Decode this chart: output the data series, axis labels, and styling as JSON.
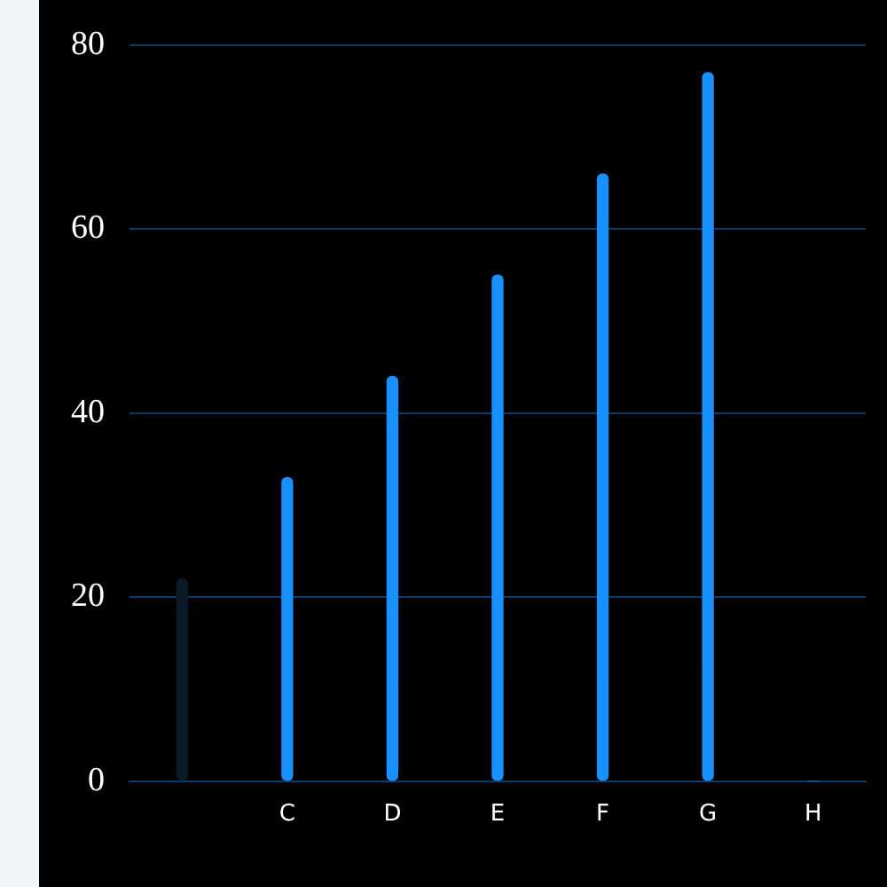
{
  "chart_data": {
    "type": "bar",
    "categories": [
      null,
      "C",
      "D",
      "E",
      "F",
      "G",
      "H"
    ],
    "values": [
      22,
      33,
      44,
      55,
      66,
      77,
      0
    ],
    "colors": [
      "#0a1a26",
      "#1890ff",
      "#1890ff",
      "#1890ff",
      "#1890ff",
      "#1890ff",
      "#1890ff"
    ],
    "ylim": [
      0,
      80
    ],
    "yticks": [
      0,
      20,
      40,
      60,
      80
    ],
    "grid": "y",
    "legend": false
  }
}
